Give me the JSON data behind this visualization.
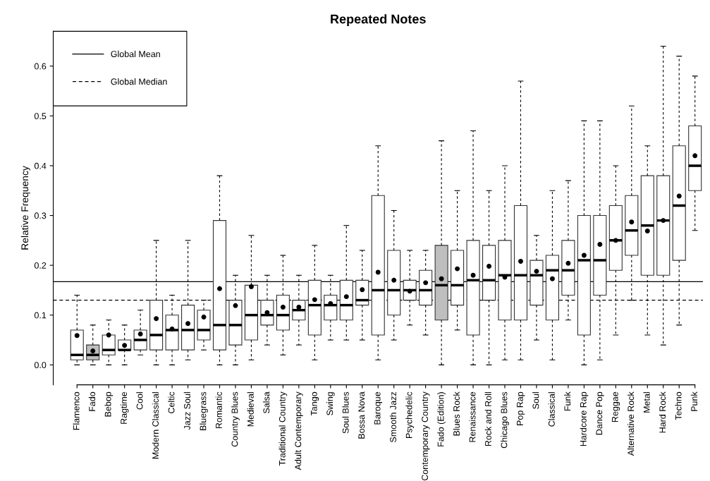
{
  "chart_data": {
    "type": "box",
    "title": "Repeated Notes",
    "ylabel": "Relative Frequency",
    "categories": [
      "Flamenco",
      "Fado",
      "Bebop",
      "Ragtime",
      "Cool",
      "Modern Classical",
      "Celtic",
      "Jazz Soul",
      "Bluegrass",
      "Romantic",
      "Country Blues",
      "Medieval",
      "Salsa",
      "Traditional Country",
      "Adult Contemporary",
      "Tango",
      "Swing",
      "Soul Blues",
      "Bossa Nova",
      "Baroque",
      "Smooth Jazz",
      "Psychedelic",
      "Contemporary Country",
      "Fado (Edition)",
      "Blues Rock",
      "Renaissance",
      "Rock and Roll",
      "Chicago Blues",
      "Pop Rap",
      "Soul",
      "Classical",
      "Funk",
      "Hardcore Rap",
      "Dance Pop",
      "Reggae",
      "Alternative Rock",
      "Metal",
      "Hard Rock",
      "Techno",
      "Punk"
    ],
    "boxes": [
      {
        "low": 0,
        "q1": 0.01,
        "median": 0.02,
        "q3": 0.07,
        "high": 0.14,
        "mean": 0.059
      },
      {
        "low": 0,
        "q1": 0.01,
        "median": 0.02,
        "q3": 0.04,
        "high": 0.08,
        "mean": 0.028
      },
      {
        "low": 0,
        "q1": 0.02,
        "median": 0.03,
        "q3": 0.06,
        "high": 0.09,
        "mean": 0.06
      },
      {
        "low": 0,
        "q1": 0.03,
        "median": 0.03,
        "q3": 0.05,
        "high": 0.08,
        "mean": 0.039
      },
      {
        "low": 0.02,
        "q1": 0.03,
        "median": 0.05,
        "q3": 0.07,
        "high": 0.11,
        "mean": 0.062
      },
      {
        "low": 0,
        "q1": 0.03,
        "median": 0.06,
        "q3": 0.13,
        "high": 0.25,
        "mean": 0.093
      },
      {
        "low": 0,
        "q1": 0.03,
        "median": 0.07,
        "q3": 0.1,
        "high": 0.14,
        "mean": 0.072
      },
      {
        "low": 0.01,
        "q1": 0.03,
        "median": 0.07,
        "q3": 0.12,
        "high": 0.25,
        "mean": 0.083
      },
      {
        "low": 0.03,
        "q1": 0.05,
        "median": 0.07,
        "q3": 0.11,
        "high": 0.13,
        "mean": 0.096
      },
      {
        "low": 0,
        "q1": 0.03,
        "median": 0.08,
        "q3": 0.29,
        "high": 0.38,
        "mean": 0.153
      },
      {
        "low": 0,
        "q1": 0.04,
        "median": 0.08,
        "q3": 0.13,
        "high": 0.18,
        "mean": 0.119
      },
      {
        "low": 0.01,
        "q1": 0.05,
        "median": 0.1,
        "q3": 0.16,
        "high": 0.26,
        "mean": 0.157
      },
      {
        "low": 0.04,
        "q1": 0.08,
        "median": 0.1,
        "q3": 0.13,
        "high": 0.18,
        "mean": 0.105
      },
      {
        "low": 0.02,
        "q1": 0.07,
        "median": 0.1,
        "q3": 0.14,
        "high": 0.22,
        "mean": 0.116
      },
      {
        "low": 0.04,
        "q1": 0.09,
        "median": 0.11,
        "q3": 0.13,
        "high": 0.18,
        "mean": 0.116
      },
      {
        "low": 0.01,
        "q1": 0.06,
        "median": 0.12,
        "q3": 0.17,
        "high": 0.24,
        "mean": 0.131
      },
      {
        "low": 0.05,
        "q1": 0.09,
        "median": 0.12,
        "q3": 0.14,
        "high": 0.18,
        "mean": 0.123
      },
      {
        "low": 0.05,
        "q1": 0.09,
        "median": 0.12,
        "q3": 0.17,
        "high": 0.28,
        "mean": 0.137
      },
      {
        "low": 0.05,
        "q1": 0.12,
        "median": 0.13,
        "q3": 0.17,
        "high": 0.23,
        "mean": 0.151
      },
      {
        "low": 0.01,
        "q1": 0.06,
        "median": 0.15,
        "q3": 0.34,
        "high": 0.44,
        "mean": 0.186
      },
      {
        "low": 0.05,
        "q1": 0.1,
        "median": 0.15,
        "q3": 0.23,
        "high": 0.31,
        "mean": 0.17
      },
      {
        "low": 0.08,
        "q1": 0.13,
        "median": 0.15,
        "q3": 0.17,
        "high": 0.23,
        "mean": 0.148
      },
      {
        "low": 0.06,
        "q1": 0.12,
        "median": 0.15,
        "q3": 0.19,
        "high": 0.23,
        "mean": 0.165
      },
      {
        "low": 0,
        "q1": 0.09,
        "median": 0.16,
        "q3": 0.24,
        "high": 0.45,
        "mean": 0.173
      },
      {
        "low": 0.07,
        "q1": 0.12,
        "median": 0.16,
        "q3": 0.23,
        "high": 0.35,
        "mean": 0.193
      },
      {
        "low": 0,
        "q1": 0.06,
        "median": 0.17,
        "q3": 0.25,
        "high": 0.47,
        "mean": 0.18
      },
      {
        "low": 0,
        "q1": 0.13,
        "median": 0.17,
        "q3": 0.24,
        "high": 0.35,
        "mean": 0.198
      },
      {
        "low": 0.01,
        "q1": 0.09,
        "median": 0.18,
        "q3": 0.25,
        "high": 0.4,
        "mean": 0.176
      },
      {
        "low": 0.01,
        "q1": 0.09,
        "median": 0.18,
        "q3": 0.32,
        "high": 0.57,
        "mean": 0.208
      },
      {
        "low": 0.05,
        "q1": 0.12,
        "median": 0.18,
        "q3": 0.21,
        "high": 0.26,
        "mean": 0.188
      },
      {
        "low": 0.01,
        "q1": 0.09,
        "median": 0.19,
        "q3": 0.22,
        "high": 0.35,
        "mean": 0.173
      },
      {
        "low": 0.09,
        "q1": 0.14,
        "median": 0.19,
        "q3": 0.25,
        "high": 0.37,
        "mean": 0.204
      },
      {
        "low": 0,
        "q1": 0.06,
        "median": 0.21,
        "q3": 0.3,
        "high": 0.49,
        "mean": 0.22
      },
      {
        "low": 0.01,
        "q1": 0.14,
        "median": 0.21,
        "q3": 0.3,
        "high": 0.49,
        "mean": 0.242
      },
      {
        "low": 0.06,
        "q1": 0.19,
        "median": 0.25,
        "q3": 0.32,
        "high": 0.4,
        "mean": 0.25
      },
      {
        "low": 0.13,
        "q1": 0.22,
        "median": 0.27,
        "q3": 0.34,
        "high": 0.52,
        "mean": 0.287
      },
      {
        "low": 0.06,
        "q1": 0.18,
        "median": 0.28,
        "q3": 0.38,
        "high": 0.44,
        "mean": 0.269
      },
      {
        "low": 0.04,
        "q1": 0.18,
        "median": 0.29,
        "q3": 0.38,
        "high": 0.64,
        "mean": 0.29
      },
      {
        "low": 0.08,
        "q1": 0.21,
        "median": 0.32,
        "q3": 0.44,
        "high": 0.62,
        "mean": 0.339
      },
      {
        "low": 0.27,
        "q1": 0.35,
        "median": 0.4,
        "q3": 0.48,
        "high": 0.58,
        "mean": 0.42
      }
    ],
    "colors": [
      "#ffffff",
      "#bebebe",
      "#ffffff",
      "#ffffff",
      "#ffffff",
      "#ffffff",
      "#ffffff",
      "#ffffff",
      "#ffffff",
      "#ffffff",
      "#ffffff",
      "#ffffff",
      "#ffffff",
      "#ffffff",
      "#ffffff",
      "#ffffff",
      "#ffffff",
      "#ffffff",
      "#ffffff",
      "#ffffff",
      "#ffffff",
      "#ffffff",
      "#ffffff",
      "#bebebe",
      "#ffffff",
      "#ffffff",
      "#ffffff",
      "#ffffff",
      "#ffffff",
      "#ffffff",
      "#ffffff",
      "#ffffff",
      "#ffffff",
      "#ffffff",
      "#ffffff",
      "#ffffff",
      "#ffffff",
      "#ffffff",
      "#ffffff",
      "#ffffff"
    ],
    "ylim": [
      -0.04,
      0.67
    ],
    "yticks": [
      {
        "value": 0,
        "label": "0.0"
      },
      {
        "value": 0.1,
        "label": "0.1"
      },
      {
        "value": 0.2,
        "label": "0.2"
      },
      {
        "value": 0.3,
        "label": "0.3"
      },
      {
        "value": 0.4,
        "label": "0.4"
      },
      {
        "value": 0.5,
        "label": "0.5"
      },
      {
        "value": 0.6,
        "label": "0.6"
      }
    ],
    "ref_lines": [
      {
        "axis": "y",
        "value": 0.167,
        "label": "Global Mean",
        "line_style": "solid",
        "color": "#000000"
      },
      {
        "axis": "y",
        "value": 0.13,
        "label": "Global Median",
        "line_style": "dashed",
        "color": "#000000"
      }
    ],
    "legend": "top left",
    "grid": false
  }
}
